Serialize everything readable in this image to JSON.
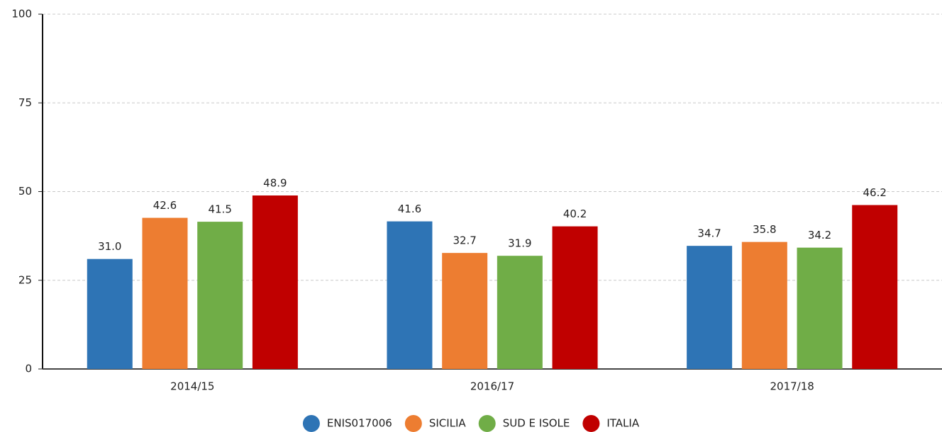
{
  "chart_data": {
    "type": "bar",
    "categories": [
      "2014/15",
      "2016/17",
      "2017/18"
    ],
    "series": [
      {
        "name": "ENIS017006",
        "color": "#2e74b5",
        "values": [
          31.0,
          41.6,
          34.7
        ],
        "value_labels": [
          "31.0",
          "41.6",
          "34.7"
        ]
      },
      {
        "name": "SICILIA",
        "color": "#ed7d31",
        "values": [
          42.6,
          32.7,
          35.8
        ],
        "value_labels": [
          "42.6",
          "32.7",
          "35.8"
        ]
      },
      {
        "name": "SUD E ISOLE",
        "color": "#70ad47",
        "values": [
          41.5,
          31.9,
          34.2
        ],
        "value_labels": [
          "41.5",
          "31.9",
          "34.2"
        ]
      },
      {
        "name": "ITALIA",
        "color": "#c00000",
        "values": [
          48.9,
          40.2,
          46.2
        ],
        "value_labels": [
          "48.9",
          "40.2",
          "46.2"
        ]
      }
    ],
    "ylim": [
      0,
      100
    ],
    "yticks": [
      0,
      25,
      50,
      75,
      100
    ],
    "grid": true,
    "legend": "bottom"
  }
}
